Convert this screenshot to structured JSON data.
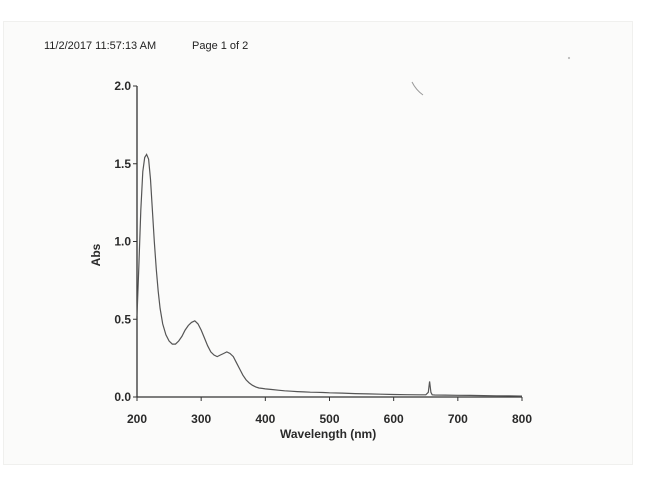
{
  "header": {
    "timestamp": "11/2/2017 11:57:13 AM",
    "page": "Page 1 of 2"
  },
  "chart_data": {
    "type": "line",
    "xlabel": "Wavelength (nm)",
    "ylabel": "Abs",
    "xlim": [
      200,
      800
    ],
    "ylim": [
      0.0,
      2.0
    ],
    "x_ticks": [
      "200",
      "300",
      "400",
      "500",
      "600",
      "700",
      "800"
    ],
    "y_ticks": [
      "0.0",
      "0.5",
      "1.0",
      "1.5",
      "2.0"
    ],
    "grid": false,
    "series": [
      {
        "color": "#555555",
        "x": [
          200,
          203,
          206,
          209,
          212,
          215,
          218,
          221,
          224,
          227,
          230,
          233,
          236,
          240,
          245,
          250,
          255,
          260,
          265,
          270,
          275,
          280,
          285,
          290,
          295,
          300,
          305,
          310,
          315,
          320,
          325,
          330,
          335,
          340,
          345,
          350,
          355,
          360,
          365,
          370,
          375,
          380,
          385,
          390,
          395,
          400,
          410,
          420,
          430,
          440,
          450,
          460,
          470,
          480,
          490,
          500,
          520,
          540,
          560,
          580,
          600,
          620,
          640,
          650,
          654,
          656,
          658,
          660,
          664,
          680,
          700,
          720,
          740,
          760,
          780,
          800
        ],
        "y": [
          0.52,
          0.85,
          1.2,
          1.45,
          1.54,
          1.56,
          1.53,
          1.4,
          1.2,
          1.0,
          0.82,
          0.68,
          0.57,
          0.47,
          0.4,
          0.36,
          0.34,
          0.34,
          0.36,
          0.39,
          0.43,
          0.46,
          0.48,
          0.49,
          0.47,
          0.43,
          0.38,
          0.33,
          0.29,
          0.27,
          0.26,
          0.27,
          0.28,
          0.29,
          0.28,
          0.26,
          0.22,
          0.18,
          0.14,
          0.11,
          0.09,
          0.075,
          0.065,
          0.058,
          0.055,
          0.052,
          0.048,
          0.044,
          0.04,
          0.037,
          0.035,
          0.033,
          0.031,
          0.03,
          0.029,
          0.027,
          0.025,
          0.022,
          0.02,
          0.018,
          0.016,
          0.015,
          0.014,
          0.014,
          0.03,
          0.1,
          0.03,
          0.014,
          0.013,
          0.012,
          0.011,
          0.01,
          0.009,
          0.008,
          0.007,
          0.006
        ]
      }
    ]
  }
}
